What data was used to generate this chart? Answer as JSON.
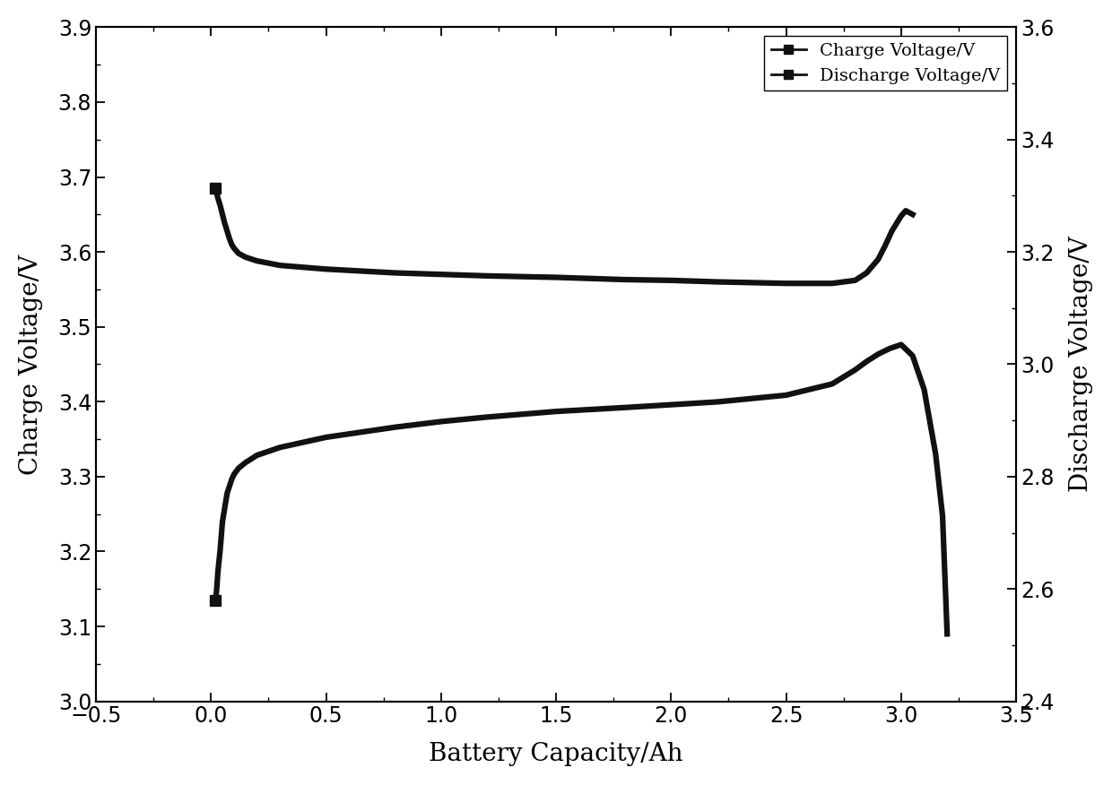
{
  "xlabel": "Battery Capacity/Ah",
  "ylabel_left": "Charge Voltage/V",
  "ylabel_right": "Discharge Voltage/V",
  "xlim": [
    -0.5,
    3.5
  ],
  "ylim_left": [
    3.0,
    3.9
  ],
  "ylim_right": [
    2.4,
    3.6
  ],
  "xticks": [
    -0.5,
    0.0,
    0.5,
    1.0,
    1.5,
    2.0,
    2.5,
    3.0,
    3.5
  ],
  "yticks_left": [
    3.0,
    3.1,
    3.2,
    3.3,
    3.4,
    3.5,
    3.6,
    3.7,
    3.8,
    3.9
  ],
  "yticks_right": [
    2.4,
    2.6,
    2.8,
    3.0,
    3.2,
    3.4,
    3.6
  ],
  "line_color": "#111111",
  "line_width": 4.5,
  "marker": "s",
  "marker_size": 9,
  "legend_labels": [
    "Charge Voltage/V",
    "Discharge Voltage/V"
  ],
  "charge_x": [
    0.02,
    0.025,
    0.03,
    0.04,
    0.05,
    0.06,
    0.07,
    0.08,
    0.09,
    0.1,
    0.12,
    0.15,
    0.2,
    0.3,
    0.5,
    0.8,
    1.0,
    1.2,
    1.5,
    1.8,
    2.0,
    2.2,
    2.5,
    2.7,
    2.8,
    2.85,
    2.9,
    2.93,
    2.96,
    3.0,
    3.02,
    3.05
  ],
  "charge_y": [
    3.685,
    3.678,
    3.672,
    3.662,
    3.65,
    3.638,
    3.628,
    3.618,
    3.61,
    3.605,
    3.598,
    3.593,
    3.588,
    3.582,
    3.577,
    3.572,
    3.57,
    3.568,
    3.566,
    3.563,
    3.562,
    3.56,
    3.558,
    3.558,
    3.562,
    3.572,
    3.59,
    3.608,
    3.628,
    3.648,
    3.655,
    3.65
  ],
  "discharge_x": [
    0.02,
    0.025,
    0.03,
    0.04,
    0.05,
    0.07,
    0.09,
    0.1,
    0.12,
    0.15,
    0.2,
    0.3,
    0.5,
    0.8,
    1.0,
    1.2,
    1.5,
    1.8,
    2.0,
    2.2,
    2.5,
    2.7,
    2.8,
    2.85,
    2.9,
    2.95,
    3.0,
    3.05,
    3.1,
    3.15,
    3.18,
    3.2
  ],
  "discharge_y_right": [
    2.58,
    2.6,
    2.63,
    2.67,
    2.72,
    2.77,
    2.795,
    2.804,
    2.815,
    2.825,
    2.838,
    2.852,
    2.87,
    2.888,
    2.898,
    2.906,
    2.916,
    2.923,
    2.928,
    2.933,
    2.945,
    2.965,
    2.99,
    3.005,
    3.018,
    3.028,
    3.035,
    3.015,
    2.955,
    2.84,
    2.73,
    2.52
  ]
}
